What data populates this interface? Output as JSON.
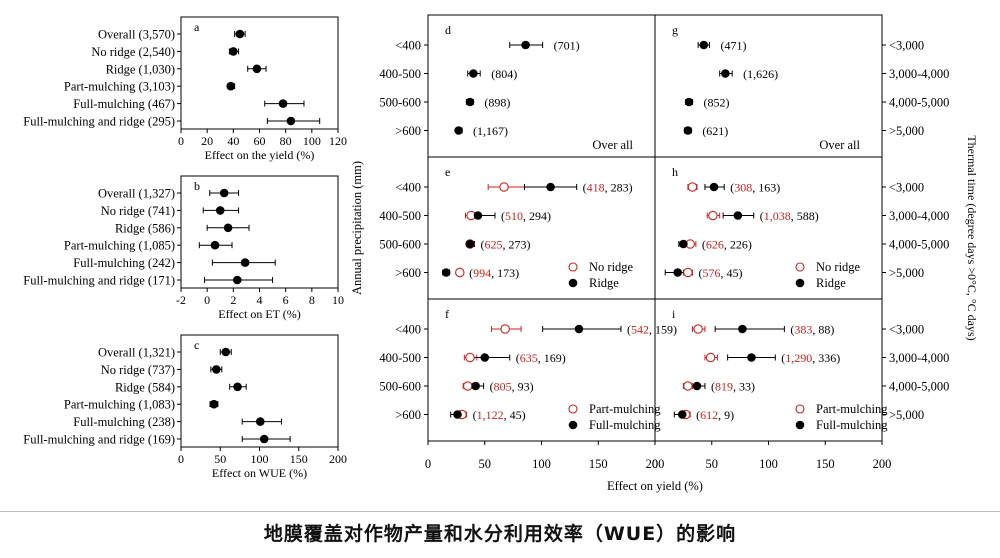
{
  "caption": "地膜覆盖对作物产量和水分利用效率（WUE）的影响",
  "colors": {
    "ridge": "#000000",
    "no_ridge": "#cc2222",
    "axis": "#000000"
  },
  "left_panels": [
    {
      "label": "a",
      "xlabel": "Effect on the yield (%)",
      "xlim": [
        0,
        120
      ],
      "ticks": [
        0,
        20,
        40,
        60,
        80,
        100,
        120
      ],
      "rows": [
        {
          "label": "Overall (3,570)",
          "value": 45,
          "lo": 41,
          "hi": 49
        },
        {
          "label": "No ridge (2,540)",
          "value": 40,
          "lo": 37,
          "hi": 44
        },
        {
          "label": "Ridge (1,030)",
          "value": 58,
          "lo": 51,
          "hi": 65
        },
        {
          "label": "Part-mulching (3,103)",
          "value": 38,
          "lo": 36,
          "hi": 41
        },
        {
          "label": "Full-mulching (467)",
          "value": 78,
          "lo": 64,
          "hi": 94
        },
        {
          "label": "Full-mulching and ridge (295)",
          "value": 84,
          "lo": 66,
          "hi": 106
        }
      ]
    },
    {
      "label": "b",
      "xlabel": "Effect on ET (%)",
      "xlim": [
        -2,
        10
      ],
      "ticks": [
        -2,
        0,
        2,
        4,
        6,
        8,
        10
      ],
      "rows": [
        {
          "label": "Overall (1,327)",
          "value": 1.3,
          "lo": 0.2,
          "hi": 2.4
        },
        {
          "label": "No ridge (741)",
          "value": 1.0,
          "lo": -0.3,
          "hi": 2.4
        },
        {
          "label": "Ridge (586)",
          "value": 1.6,
          "lo": 0.0,
          "hi": 3.2
        },
        {
          "label": "Part-mulching (1,085)",
          "value": 0.6,
          "lo": -0.6,
          "hi": 1.9
        },
        {
          "label": "Full-mulching (242)",
          "value": 2.9,
          "lo": 0.4,
          "hi": 5.2
        },
        {
          "label": "Full-mulching and ridge (171)",
          "value": 2.3,
          "lo": -0.2,
          "hi": 5.0
        }
      ]
    },
    {
      "label": "c",
      "xlabel": "Effect on WUE (%)",
      "xlim": [
        0,
        200
      ],
      "ticks": [
        0,
        50,
        100,
        150,
        200
      ],
      "rows": [
        {
          "label": "Overall (1,321)",
          "value": 57,
          "lo": 50,
          "hi": 64
        },
        {
          "label": "No ridge (737)",
          "value": 45,
          "lo": 38,
          "hi": 52
        },
        {
          "label": "Ridge (584)",
          "value": 72,
          "lo": 62,
          "hi": 83
        },
        {
          "label": "Part-mulching (1,083)",
          "value": 42,
          "lo": 37,
          "hi": 47
        },
        {
          "label": "Full-mulching (238)",
          "value": 101,
          "lo": 78,
          "hi": 128
        },
        {
          "label": "Full-mulching and ridge (169)",
          "value": 106,
          "lo": 78,
          "hi": 139
        }
      ]
    }
  ],
  "grid": {
    "ylabel": "Annual precipitation (mm)",
    "xlabel": "Effect on yield (%)",
    "right_label": "Thermal time (degree days >0°C, °C days)",
    "xlim": [
      0,
      200
    ],
    "ticks": [
      0,
      50,
      100,
      150,
      200
    ],
    "rows_left": [
      "<400",
      "400-500",
      "500-600",
      ">600"
    ],
    "rows_right": [
      "<3,000",
      "3,000-4,000",
      "4,000-5,000",
      ">5,000"
    ],
    "panels": [
      {
        "label": "d",
        "note": "Over all",
        "mode": "single",
        "points": [
          {
            "value": 86,
            "lo": 72,
            "hi": 101,
            "n": "(701)"
          },
          {
            "value": 40,
            "lo": 35,
            "hi": 46,
            "n": "(804)"
          },
          {
            "value": 37,
            "lo": 34,
            "hi": 40,
            "n": "(898)"
          },
          {
            "value": 27,
            "lo": 25,
            "hi": 30,
            "n": "(1,167)"
          }
        ]
      },
      {
        "label": "g",
        "note": "Over all",
        "mode": "single",
        "points": [
          {
            "value": 43,
            "lo": 38,
            "hi": 48,
            "n": "(471)"
          },
          {
            "value": 62,
            "lo": 57,
            "hi": 68,
            "n": "(1,626)"
          },
          {
            "value": 30,
            "lo": 27,
            "hi": 33,
            "n": "(852)"
          },
          {
            "value": 29,
            "lo": 26,
            "hi": 32,
            "n": "(621)"
          }
        ]
      },
      {
        "label": "e",
        "mode": "pair",
        "legend": [
          "No ridge",
          "Ridge"
        ],
        "points": [
          {
            "open": 67,
            "open_lo": 53,
            "open_hi": 85,
            "filled": 108,
            "filled_lo": 85,
            "filled_hi": 131,
            "n_open": "418",
            "n_filled": "283"
          },
          {
            "open": 38,
            "open_lo": 33,
            "open_hi": 44,
            "filled": 44,
            "filled_lo": 38,
            "filled_hi": 59,
            "n_open": "510",
            "n_filled": "294"
          },
          {
            "open": 37,
            "open_lo": 34,
            "open_hi": 40,
            "filled": 37,
            "filled_lo": 34,
            "filled_hi": 41,
            "n_open": "625",
            "n_filled": "273"
          },
          {
            "open": 28,
            "open_lo": 25,
            "open_hi": 31,
            "filled": 16,
            "filled_lo": 13,
            "filled_hi": 19,
            "n_open": "994",
            "n_filled": "173"
          }
        ]
      },
      {
        "label": "h",
        "mode": "pair",
        "legend": [
          "No ridge",
          "Ridge"
        ],
        "points": [
          {
            "open": 33,
            "open_lo": 29,
            "open_hi": 37,
            "filled": 52,
            "filled_lo": 44,
            "filled_hi": 61,
            "n_open": "308",
            "n_filled": "163"
          },
          {
            "open": 51,
            "open_lo": 46,
            "open_hi": 57,
            "filled": 73,
            "filled_lo": 60,
            "filled_hi": 87,
            "n_open": "1,038",
            "n_filled": "588"
          },
          {
            "open": 31,
            "open_lo": 27,
            "open_hi": 36,
            "filled": 25,
            "filled_lo": 21,
            "filled_hi": 29,
            "n_open": "626",
            "n_filled": "226"
          },
          {
            "open": 29,
            "open_lo": 25,
            "open_hi": 33,
            "filled": 20,
            "filled_lo": 9,
            "filled_hi": 29,
            "n_open": "576",
            "n_filled": "45"
          }
        ]
      },
      {
        "label": "f",
        "mode": "pair",
        "legend": [
          "Part-mulching",
          "Full-mulching"
        ],
        "points": [
          {
            "open": 68,
            "open_lo": 56,
            "open_hi": 82,
            "filled": 133,
            "filled_lo": 101,
            "filled_hi": 170,
            "n_open": "542",
            "n_filled": "159"
          },
          {
            "open": 37,
            "open_lo": 32,
            "open_hi": 43,
            "filled": 50,
            "filled_lo": 38,
            "filled_hi": 72,
            "n_open": "635",
            "n_filled": "169"
          },
          {
            "open": 35,
            "open_lo": 31,
            "open_hi": 39,
            "filled": 42,
            "filled_lo": 35,
            "filled_hi": 49,
            "n_open": "805",
            "n_filled": "93"
          },
          {
            "open": 30,
            "open_lo": 26,
            "open_hi": 34,
            "filled": 26,
            "filled_lo": 20,
            "filled_hi": 33,
            "n_open": "1,122",
            "n_filled": "45"
          }
        ]
      },
      {
        "label": "i",
        "mode": "pair",
        "legend": [
          "Part-mulching",
          "Full-mulching"
        ],
        "points": [
          {
            "open": 38,
            "open_lo": 33,
            "open_hi": 44,
            "filled": 77,
            "filled_lo": 53,
            "filled_hi": 114,
            "n_open": "383",
            "n_filled": "88"
          },
          {
            "open": 49,
            "open_lo": 44,
            "open_hi": 55,
            "filled": 85,
            "filled_lo": 64,
            "filled_hi": 106,
            "n_open": "1,290",
            "n_filled": "336"
          },
          {
            "open": 29,
            "open_lo": 25,
            "open_hi": 33,
            "filled": 37,
            "filled_lo": 30,
            "filled_hi": 44,
            "n_open": "819",
            "n_filled": "33"
          },
          {
            "open": 27,
            "open_lo": 22,
            "open_hi": 31,
            "filled": 24,
            "filled_lo": 17,
            "filled_hi": 30,
            "n_open": "612",
            "n_filled": "9"
          }
        ]
      }
    ]
  },
  "chart_data": [
    {
      "type": "scatter",
      "title": "",
      "xlabel": "Effect on the yield (%)",
      "xlim": [
        0,
        120
      ],
      "categories": [
        "Overall (3,570)",
        "No ridge (2,540)",
        "Ridge (1,030)",
        "Part-mulching (3,103)",
        "Full-mulching (467)",
        "Full-mulching and ridge (295)"
      ],
      "values": [
        45,
        40,
        58,
        38,
        78,
        84
      ]
    },
    {
      "type": "scatter",
      "title": "",
      "xlabel": "Effect on ET (%)",
      "xlim": [
        -2,
        10
      ],
      "categories": [
        "Overall (1,327)",
        "No ridge (741)",
        "Ridge (586)",
        "Part-mulching (1,085)",
        "Full-mulching (242)",
        "Full-mulching and ridge (171)"
      ],
      "values": [
        1.3,
        1.0,
        1.6,
        0.6,
        2.9,
        2.3
      ]
    },
    {
      "type": "scatter",
      "title": "",
      "xlabel": "Effect on WUE (%)",
      "xlim": [
        0,
        200
      ],
      "categories": [
        "Overall (1,321)",
        "No ridge (737)",
        "Ridge (584)",
        "Part-mulching (1,083)",
        "Full-mulching (238)",
        "Full-mulching and ridge (169)"
      ],
      "values": [
        57,
        45,
        72,
        42,
        101,
        106
      ]
    }
  ]
}
